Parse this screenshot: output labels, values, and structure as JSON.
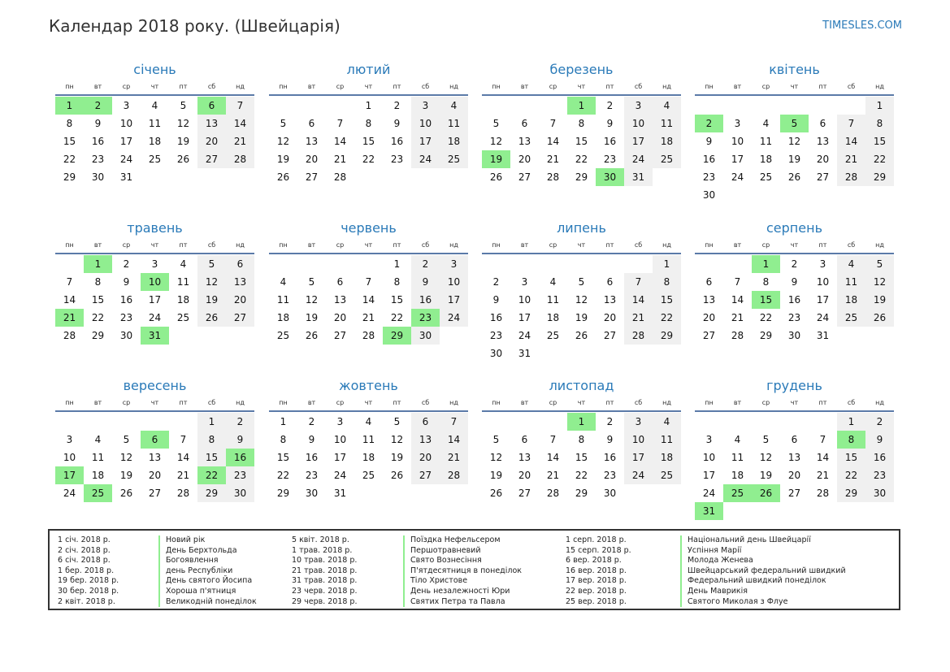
{
  "header": {
    "title": "Календар 2018 року. (Швейцарія)",
    "site": "TIMESLES.COM"
  },
  "weekdays": [
    "пн",
    "вт",
    "ср",
    "чт",
    "пт",
    "сб",
    "нд"
  ],
  "colors": {
    "accent": "#2a7ab8",
    "holiday": "#90ee90",
    "weekend": "#f0f0f0"
  },
  "months": [
    {
      "name": "січень",
      "offset": 0,
      "days": 31,
      "holidays": [
        1,
        2,
        6
      ]
    },
    {
      "name": "лютий",
      "offset": 3,
      "days": 28,
      "holidays": []
    },
    {
      "name": "березень",
      "offset": 3,
      "days": 31,
      "holidays": [
        1,
        19,
        30
      ]
    },
    {
      "name": "квітень",
      "offset": 6,
      "days": 30,
      "holidays": [
        2,
        5
      ]
    },
    {
      "name": "травень",
      "offset": 1,
      "days": 31,
      "holidays": [
        1,
        10,
        21,
        31
      ]
    },
    {
      "name": "червень",
      "offset": 4,
      "days": 30,
      "holidays": [
        23,
        29
      ]
    },
    {
      "name": "липень",
      "offset": 6,
      "days": 31,
      "holidays": []
    },
    {
      "name": "серпень",
      "offset": 2,
      "days": 31,
      "holidays": [
        1,
        15
      ]
    },
    {
      "name": "вересень",
      "offset": 5,
      "days": 30,
      "holidays": [
        6,
        16,
        17,
        22,
        25
      ]
    },
    {
      "name": "жовтень",
      "offset": 0,
      "days": 31,
      "holidays": []
    },
    {
      "name": "листопад",
      "offset": 3,
      "days": 30,
      "holidays": [
        1
      ]
    },
    {
      "name": "грудень",
      "offset": 5,
      "days": 31,
      "holidays": [
        8,
        25,
        26,
        31
      ]
    }
  ],
  "legend": [
    [
      {
        "date": "1 січ. 2018 р.",
        "name": "Новий рік"
      },
      {
        "date": "2 січ. 2018 р.",
        "name": "День Берхтольда"
      },
      {
        "date": "6 січ. 2018 р.",
        "name": "Богоявлення"
      },
      {
        "date": "1 бер. 2018 р.",
        "name": "день Республіки"
      },
      {
        "date": "19 бер. 2018 р.",
        "name": "День святого Йосипа"
      },
      {
        "date": "30 бер. 2018 р.",
        "name": "Хороша п'ятниця"
      },
      {
        "date": "2 квіт. 2018 р.",
        "name": "Великодній понеділок"
      }
    ],
    [
      {
        "date": "5 квіт. 2018 р.",
        "name": "Поїздка Нефельсером"
      },
      {
        "date": "1 трав. 2018 р.",
        "name": "Першотравневий"
      },
      {
        "date": "10 трав. 2018 р.",
        "name": "Свято Вознесіння"
      },
      {
        "date": "21 трав. 2018 р.",
        "name": "П'ятдесятниця в понеділок"
      },
      {
        "date": "31 трав. 2018 р.",
        "name": "Тіло Христове"
      },
      {
        "date": "23 черв. 2018 р.",
        "name": "День незалежності Юри"
      },
      {
        "date": "29 черв. 2018 р.",
        "name": "Святих Петра та Павла"
      }
    ],
    [
      {
        "date": "1 серп. 2018 р.",
        "name": "Національний день Швейцарії"
      },
      {
        "date": "15 серп. 2018 р.",
        "name": "Успіння Марії"
      },
      {
        "date": "6 вер. 2018 р.",
        "name": "Молода Женева"
      },
      {
        "date": "16 вер. 2018 р.",
        "name": "Швейцарський федеральний швидкий"
      },
      {
        "date": "17 вер. 2018 р.",
        "name": "Федеральний швидкий понеділок"
      },
      {
        "date": "22 вер. 2018 р.",
        "name": "День Маврикія"
      },
      {
        "date": "25 вер. 2018 р.",
        "name": "Святого Миколая з Флуе"
      }
    ]
  ]
}
